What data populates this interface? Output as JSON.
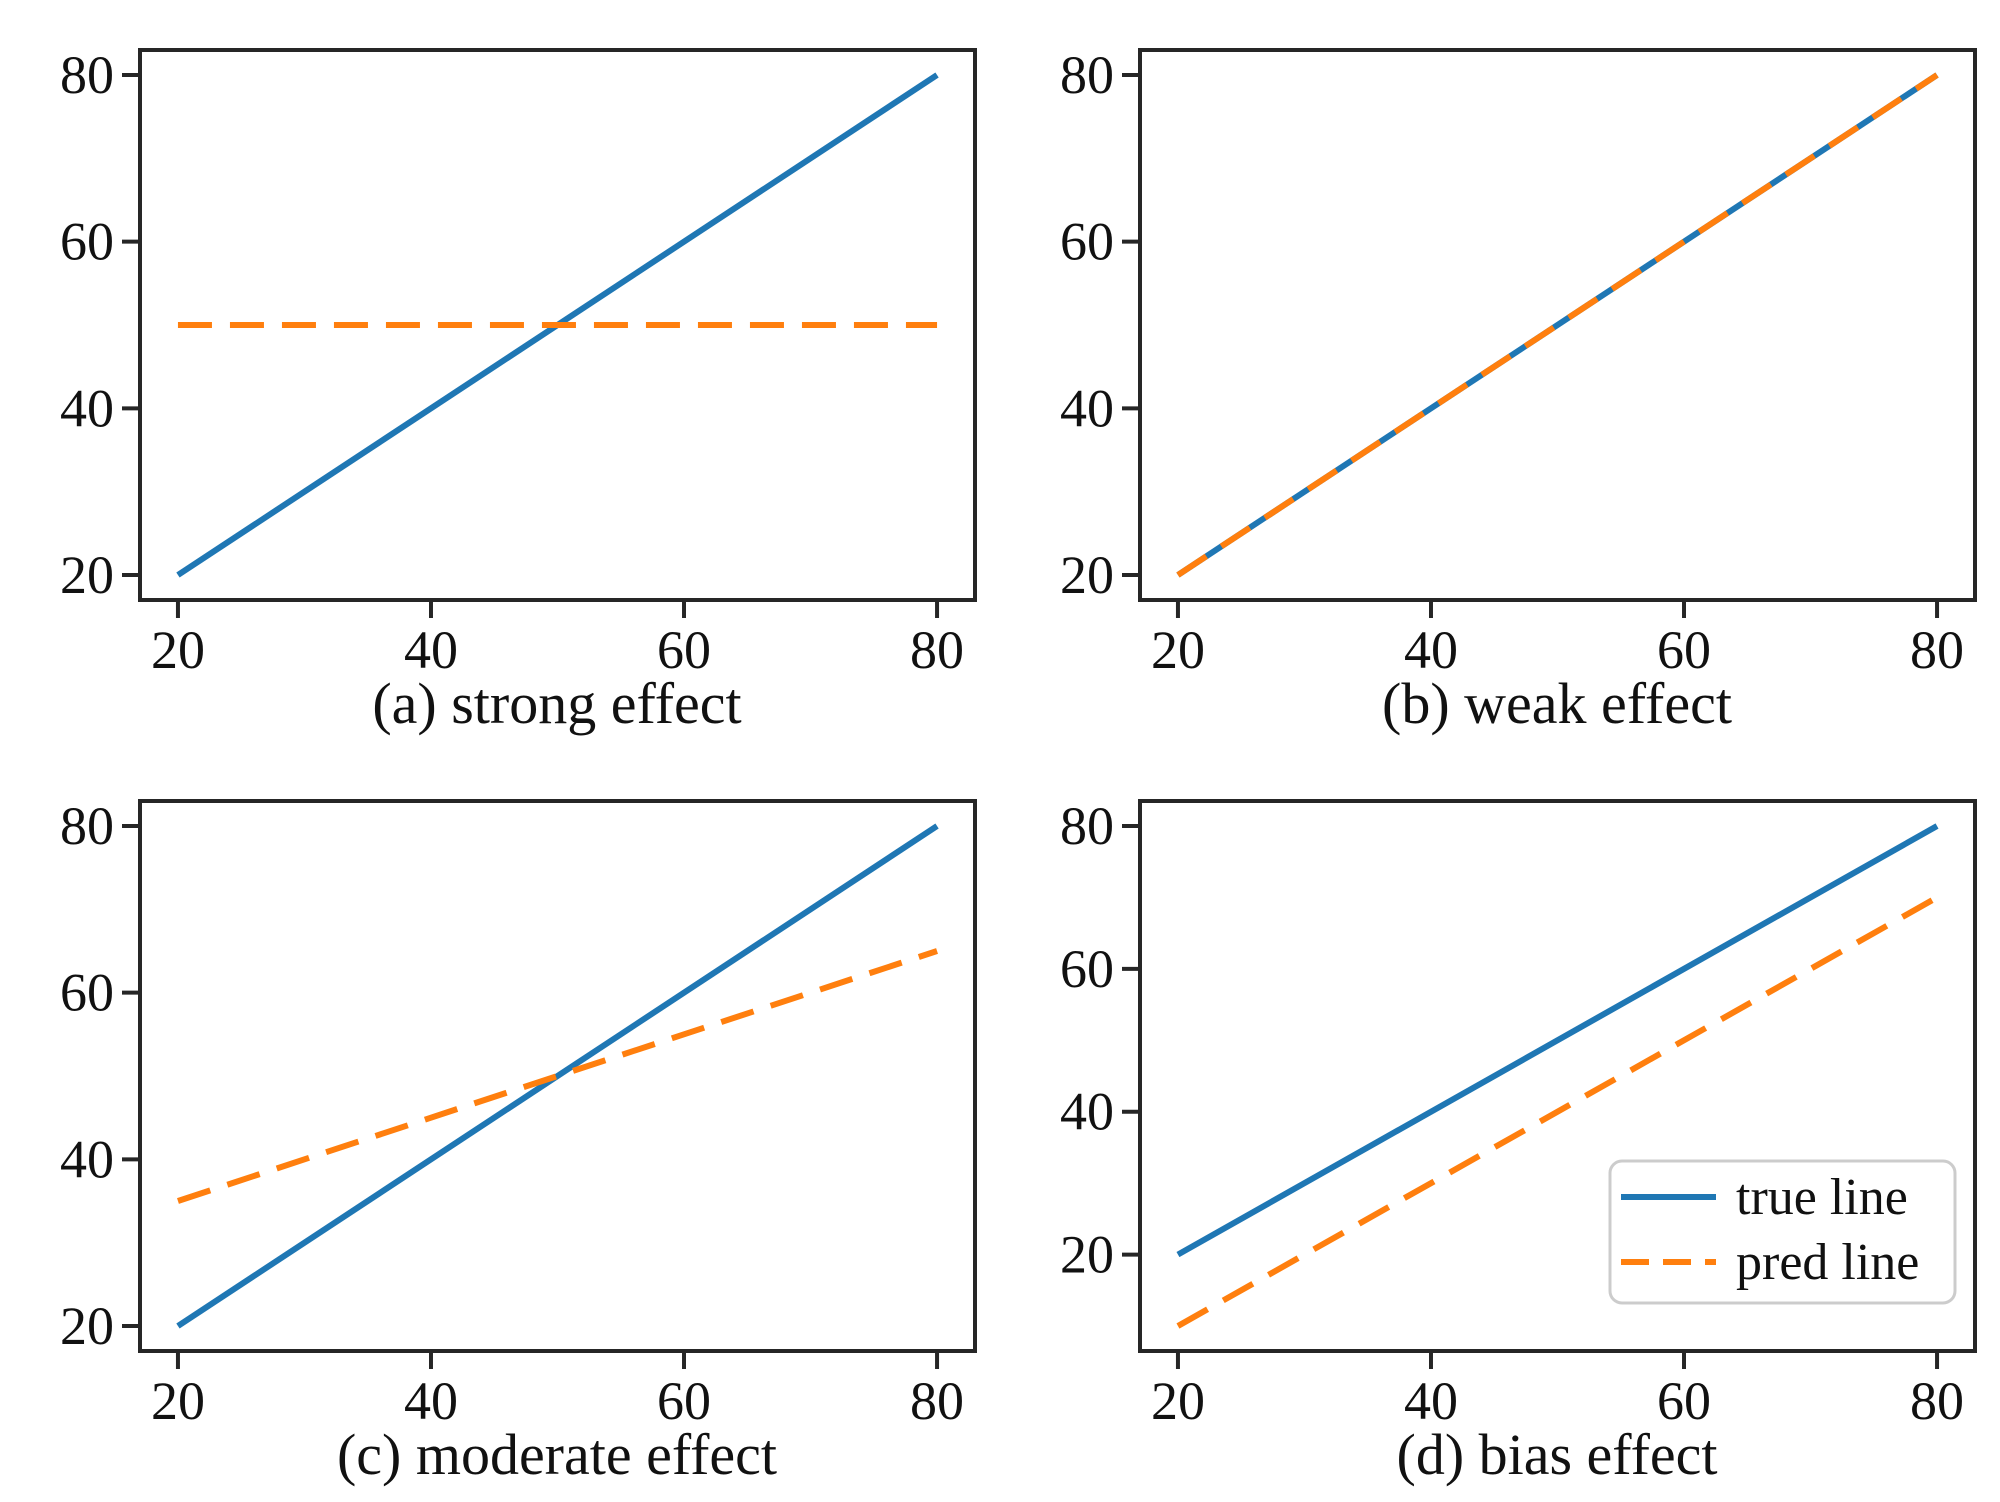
{
  "figure": {
    "background": "#ffffff",
    "text_color": "#111111"
  },
  "colors": {
    "true_line": "#1f77b4",
    "pred_line": "#ff7f0e",
    "axis": "#262626",
    "legend_border": "#cccccc",
    "legend_fill": "#ffffff"
  },
  "chart_data": [
    {
      "type": "line",
      "title": "(a) strong effect",
      "xlabel": "",
      "ylabel": "",
      "xlim": [
        17,
        83
      ],
      "ylim": [
        17,
        83
      ],
      "xticks": [
        20,
        40,
        60,
        80
      ],
      "yticks": [
        20,
        40,
        60,
        80
      ],
      "grid": false,
      "series": [
        {
          "name": "true line",
          "style": "solid",
          "color_key": "true_line",
          "x": [
            20,
            80
          ],
          "y": [
            20,
            80
          ]
        },
        {
          "name": "pred line",
          "style": "dashed",
          "color_key": "pred_line",
          "x": [
            20,
            80
          ],
          "y": [
            50,
            50
          ]
        }
      ],
      "legend": null
    },
    {
      "type": "line",
      "title": "(b) weak effect",
      "xlabel": "",
      "ylabel": "",
      "xlim": [
        17,
        83
      ],
      "ylim": [
        17,
        83
      ],
      "xticks": [
        20,
        40,
        60,
        80
      ],
      "yticks": [
        20,
        40,
        60,
        80
      ],
      "grid": false,
      "series": [
        {
          "name": "true line",
          "style": "solid",
          "color_key": "true_line",
          "x": [
            20,
            80
          ],
          "y": [
            20,
            80
          ]
        },
        {
          "name": "pred line",
          "style": "dashed",
          "color_key": "pred_line",
          "x": [
            20,
            80
          ],
          "y": [
            20,
            80
          ]
        }
      ],
      "legend": null
    },
    {
      "type": "line",
      "title": "(c) moderate effect",
      "xlabel": "",
      "ylabel": "",
      "xlim": [
        17,
        83
      ],
      "ylim": [
        17,
        83
      ],
      "xticks": [
        20,
        40,
        60,
        80
      ],
      "yticks": [
        20,
        40,
        60,
        80
      ],
      "grid": false,
      "series": [
        {
          "name": "true line",
          "style": "solid",
          "color_key": "true_line",
          "x": [
            20,
            80
          ],
          "y": [
            20,
            80
          ]
        },
        {
          "name": "pred line",
          "style": "dashed",
          "color_key": "pred_line",
          "x": [
            20,
            80
          ],
          "y": [
            35,
            65
          ]
        }
      ],
      "legend": null
    },
    {
      "type": "line",
      "title": "(d) bias effect",
      "xlabel": "",
      "ylabel": "",
      "xlim": [
        17,
        83
      ],
      "ylim": [
        6.5,
        83.5
      ],
      "xticks": [
        20,
        40,
        60,
        80
      ],
      "yticks": [
        20,
        40,
        60,
        80
      ],
      "grid": false,
      "series": [
        {
          "name": "true line",
          "style": "solid",
          "color_key": "true_line",
          "x": [
            20,
            80
          ],
          "y": [
            20,
            80
          ]
        },
        {
          "name": "pred line",
          "style": "dashed",
          "color_key": "pred_line",
          "x": [
            20,
            80
          ],
          "y": [
            10,
            70
          ]
        }
      ],
      "legend": {
        "position": "lower right",
        "entries": [
          {
            "label": "true line",
            "style": "solid",
            "color_key": "true_line"
          },
          {
            "label": "pred line",
            "style": "dashed",
            "color_key": "pred_line"
          }
        ]
      }
    }
  ]
}
